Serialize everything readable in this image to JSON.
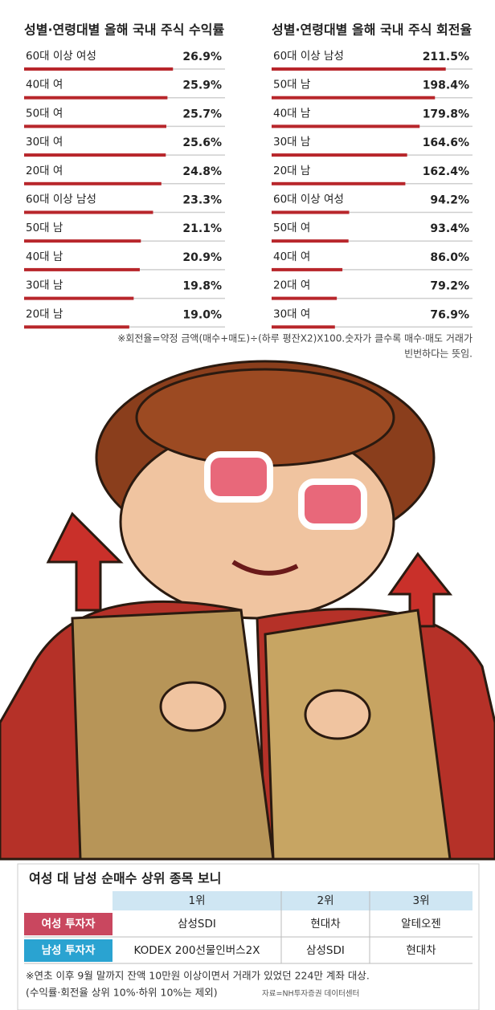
{
  "chart_data": [
    {
      "type": "bar",
      "title": "성별·연령대별 올해 국내 주식 수익률",
      "categories": [
        "60대 이상 여성",
        "40대 여",
        "50대 여",
        "30대 여",
        "20대 여",
        "60대 이상 남성",
        "50대 남",
        "40대 남",
        "30대 남",
        "20대 남"
      ],
      "values": [
        26.9,
        25.9,
        25.7,
        25.6,
        24.8,
        23.3,
        21.1,
        20.9,
        19.8,
        19.0
      ],
      "value_labels": [
        "26.9%",
        "25.9%",
        "25.7%",
        "25.6%",
        "24.8%",
        "23.3%",
        "21.1%",
        "20.9%",
        "19.8%",
        "19.0%"
      ],
      "color": "#b8262b",
      "xlim": [
        0,
        36.3
      ]
    },
    {
      "type": "bar",
      "title": "성별·연령대별 올해 국내 주식 회전율",
      "categories": [
        "60대 이상 남성",
        "50대 남",
        "40대 남",
        "30대 남",
        "20대 남",
        "60대 이상 여성",
        "50대 여",
        "40대 여",
        "20대 여",
        "30대 여"
      ],
      "values": [
        211.5,
        198.4,
        179.8,
        164.6,
        162.4,
        94.2,
        93.4,
        86.0,
        79.2,
        76.9
      ],
      "value_labels": [
        "211.5%",
        "198.4%",
        "179.8%",
        "164.6%",
        "162.4%",
        "94.2%",
        "93.4%",
        "86.0%",
        "79.2%",
        "76.9%"
      ],
      "color": "#b8262b",
      "xlim": [
        0,
        244
      ]
    }
  ],
  "note": [
    "※회전율=약정 금액(매수+매도)÷(하루 평잔X2)X100.숫자가 클수록 매수·매도 거래가",
    "빈번하다는 뜻임."
  ],
  "table": {
    "title": "여성 대 남성 순매수 상위 종목 보니",
    "columns": [
      "1위",
      "2위",
      "3위"
    ],
    "rows": [
      {
        "label": "여성 투자자",
        "cells": [
          "삼성SDI",
          "현대차",
          "알테오젠"
        ]
      },
      {
        "label": "남성 투자자",
        "cells": [
          "KODEX 200선물인버스2X",
          "삼성SDI",
          "현대차"
        ]
      }
    ]
  },
  "footnote": [
    "※연초 이후 9월 말까지 잔액 10만원 이상이면서 거래가 있었던 224만 계좌 대상.",
    "(수익률·회전율 상위 10%·하위 10%는 제외)"
  ],
  "source": "자료=NH투자증권 데이터센터"
}
